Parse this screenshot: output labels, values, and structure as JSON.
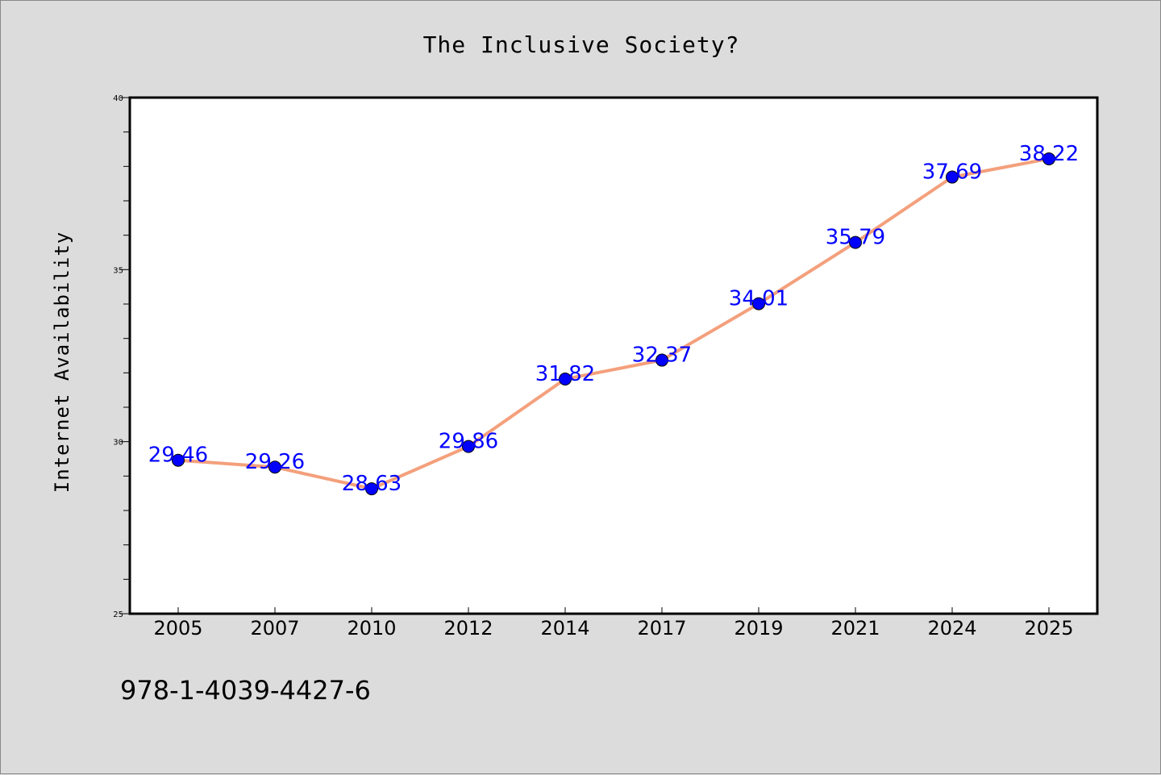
{
  "chart_data": {
    "type": "line",
    "title": "The Inclusive Society?",
    "xlabel": "",
    "ylabel": "Internet Availability",
    "categories": [
      "2005",
      "2007",
      "2010",
      "2012",
      "2014",
      "2017",
      "2019",
      "2021",
      "2024",
      "2025"
    ],
    "series": [
      {
        "values": [
          29.46,
          29.26,
          28.63,
          29.86,
          31.82,
          32.37,
          34.01,
          35.79,
          37.69,
          38.22
        ],
        "line_color": "#f4a07c",
        "marker_color": "#0000ff"
      }
    ],
    "data_labels": [
      "29.46",
      "29.26",
      "28.63",
      "29.86",
      "31.82",
      "32.37",
      "34.01",
      "35.79",
      "37.69",
      "38.22"
    ],
    "ylim": [
      25,
      40
    ],
    "yticks": [
      25,
      30,
      35,
      40
    ],
    "ytick_labels": [
      "25",
      "30",
      "35",
      "40"
    ],
    "grid": false,
    "data_label_color": "#0000ff",
    "plot_background": "#ffffff",
    "figure_background": "#dcdcdc"
  },
  "footer": {
    "isbn": "978-1-4039-4427-6"
  }
}
